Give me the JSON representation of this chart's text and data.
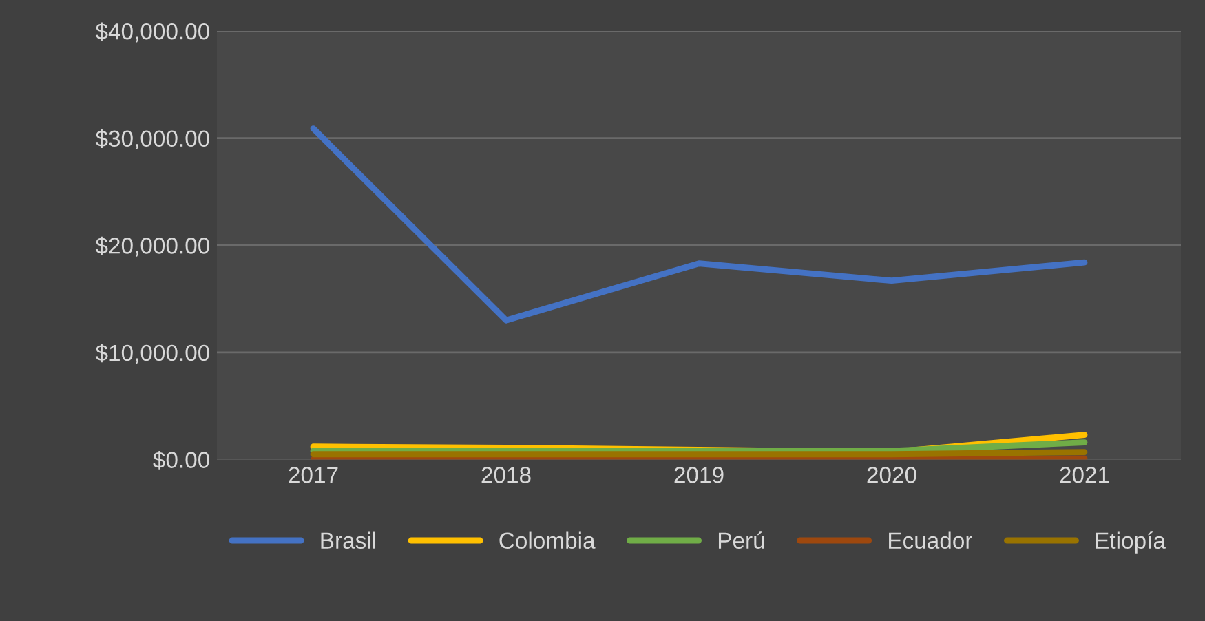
{
  "chart_data": {
    "type": "line",
    "categories": [
      "2017",
      "2018",
      "2019",
      "2020",
      "2021"
    ],
    "series": [
      {
        "name": "Brasil",
        "color": "#4472c4",
        "values": [
          30900,
          13000,
          18300,
          16700,
          18400
        ]
      },
      {
        "name": "Colombia",
        "color": "#ffc000",
        "values": [
          1200,
          1100,
          900,
          700,
          2300
        ]
      },
      {
        "name": "Perú",
        "color": "#70ad47",
        "values": [
          800,
          800,
          800,
          800,
          1600
        ]
      },
      {
        "name": "Ecuador",
        "color": "#9e480e",
        "values": [
          0,
          0,
          0,
          0,
          100
        ]
      },
      {
        "name": "Etiopía",
        "color": "#997300",
        "values": [
          500,
          500,
          500,
          500,
          700
        ]
      }
    ],
    "ylim": [
      0,
      40000
    ],
    "yticks": [
      {
        "value": 0,
        "label": "$0.00"
      },
      {
        "value": 10000,
        "label": "$10,000.00"
      },
      {
        "value": 20000,
        "label": "$20,000.00"
      },
      {
        "value": 30000,
        "label": "$30,000.00"
      },
      {
        "value": 40000,
        "label": "$40,000.00"
      }
    ],
    "grid": "y",
    "legend": "bottom",
    "marker": "none",
    "line_style": "solid"
  }
}
